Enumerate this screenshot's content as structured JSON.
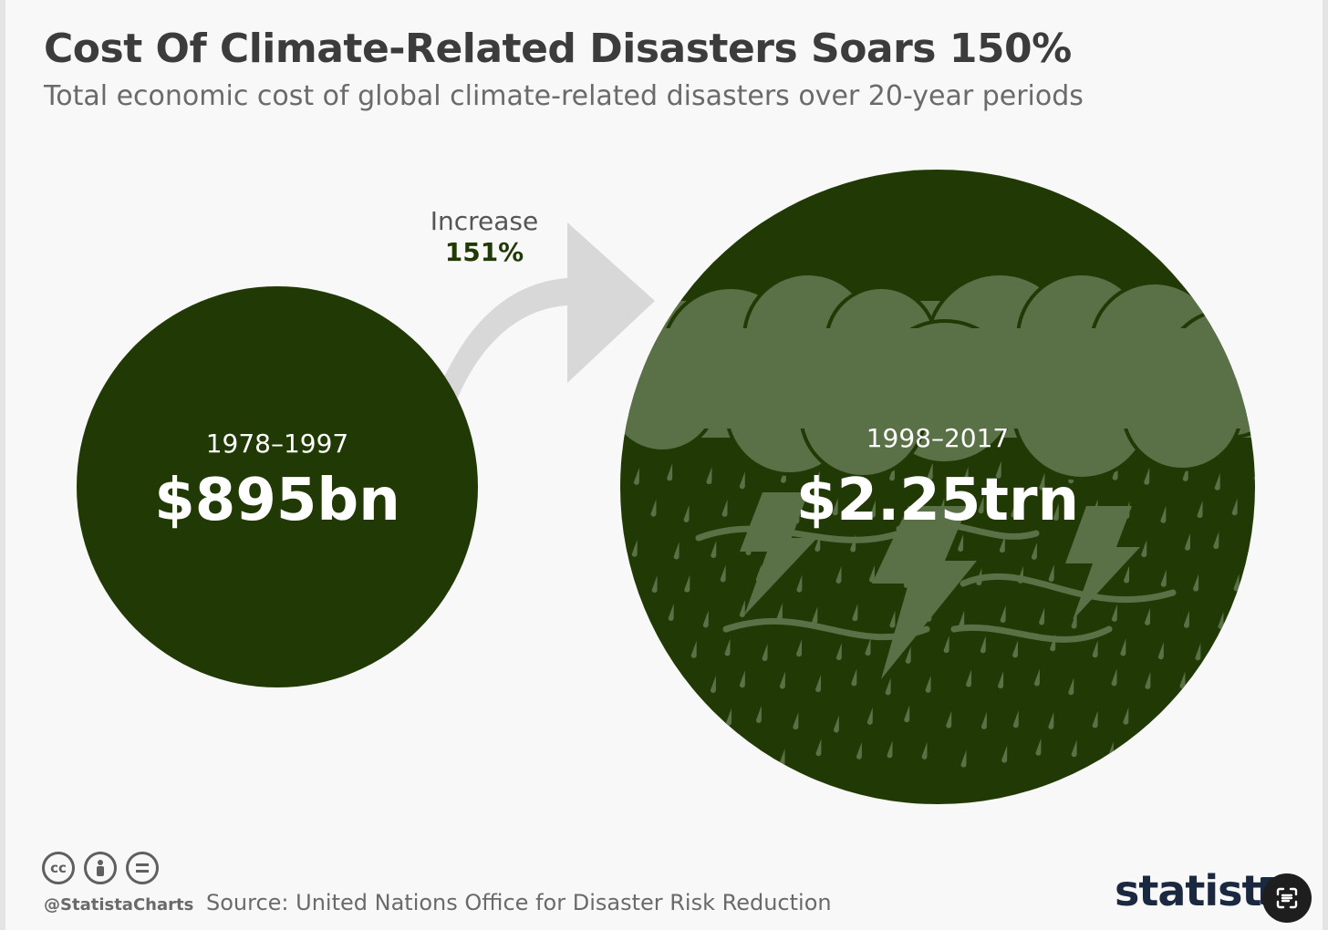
{
  "title": "Cost Of Climate-Related Disasters Soars 150%",
  "subtitle": "Total economic cost of global climate-related disasters over 20-year periods",
  "chart_data": {
    "type": "bubble",
    "categories": [
      "1978–1997",
      "1998–2017"
    ],
    "values": [
      895,
      2250
    ],
    "value_labels": [
      "$895bn",
      "$2.25trn"
    ],
    "annotation": {
      "label": "Increase",
      "value": "151%"
    },
    "colors": {
      "bubble": "#213a05",
      "storm": "#5a7046",
      "arrow": "#d8d8d8",
      "accent_text": "#213a05"
    }
  },
  "footer": {
    "handle": "@StatistaCharts",
    "source": "Source: United Nations Office for Disaster Risk Reduction",
    "license_icons": [
      "cc",
      "by",
      "nd"
    ],
    "brand": "statista"
  },
  "overlay": {
    "icon": "scan-icon"
  }
}
